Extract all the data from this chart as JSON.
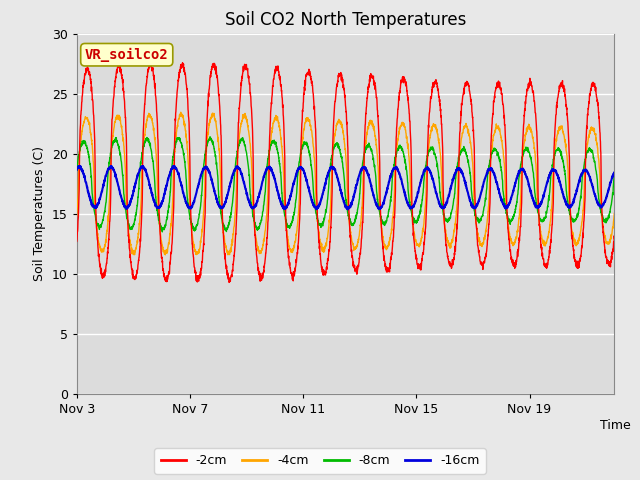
{
  "title": "Soil CO2 North Temperatures",
  "ylabel": "Soil Temperatures (C)",
  "xlabel": "Time",
  "annotation": "VR_soilco2",
  "ylim": [
    0,
    30
  ],
  "xlim_days": [
    0,
    19
  ],
  "yticks": [
    0,
    5,
    10,
    15,
    20,
    25,
    30
  ],
  "x_tick_positions": [
    0,
    4,
    8,
    12,
    16
  ],
  "x_tick_labels": [
    "Nov 3",
    "Nov 7",
    "Nov 11",
    "Nov 15",
    "Nov 19"
  ],
  "colors": {
    "2cm": "#ff0000",
    "4cm": "#ffa500",
    "8cm": "#00bb00",
    "16cm": "#0000dd"
  },
  "legend_labels": [
    "-2cm",
    "-4cm",
    "-8cm",
    "-16cm"
  ],
  "fig_bg_color": "#e8e8e8",
  "plot_bg_color": "#dcdcdc",
  "band_color": "#c8c8c8",
  "n_days": 19,
  "samples_per_day": 144
}
